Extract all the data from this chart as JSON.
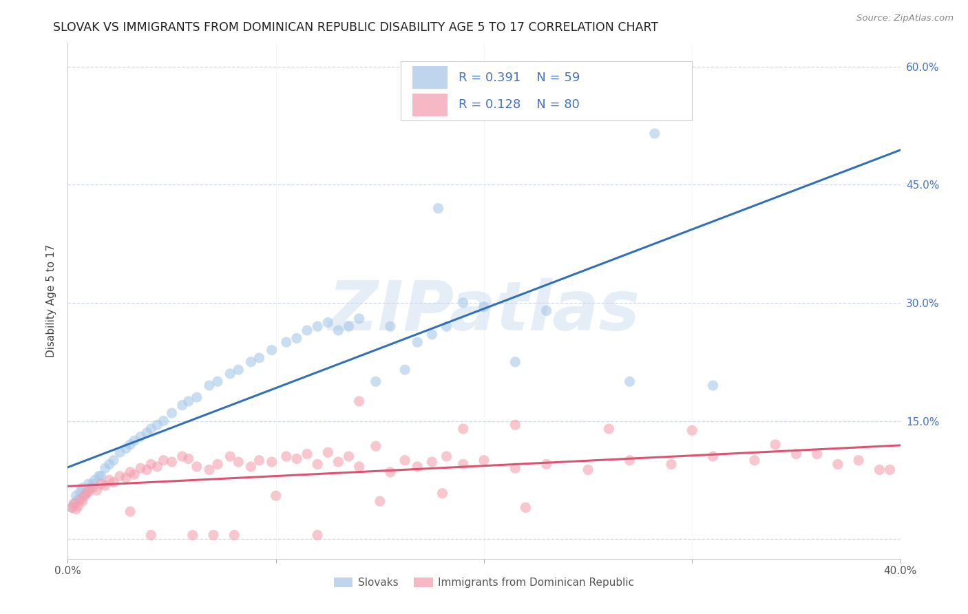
{
  "title": "SLOVAK VS IMMIGRANTS FROM DOMINICAN REPUBLIC DISABILITY AGE 5 TO 17 CORRELATION CHART",
  "source": "Source: ZipAtlas.com",
  "ylabel": "Disability Age 5 to 17",
  "xmin": 0.0,
  "xmax": 0.4,
  "ymin": -0.025,
  "ymax": 0.63,
  "yticks": [
    0.0,
    0.15,
    0.3,
    0.45,
    0.6
  ],
  "ytick_labels_right": [
    "",
    "15.0%",
    "30.0%",
    "45.0%",
    "60.0%"
  ],
  "xticks": [
    0.0,
    0.1,
    0.2,
    0.3,
    0.4
  ],
  "xtick_labels": [
    "0.0%",
    "",
    "",
    "",
    "40.0%"
  ],
  "blue_R": 0.391,
  "blue_N": 59,
  "pink_R": 0.128,
  "pink_N": 80,
  "blue_color": "#a8c8e8",
  "pink_color": "#f4a0b0",
  "blue_line_color": "#3070b8",
  "pink_line_color": "#e05070",
  "legend_label_blue": "Slovaks",
  "legend_label_pink": "Immigrants from Dominican Republic",
  "background_color": "#ffffff",
  "watermark": "ZIPatlas",
  "grid_color": "#d0d8e8",
  "blue_x": [
    0.002,
    0.003,
    0.004,
    0.005,
    0.006,
    0.007,
    0.008,
    0.009,
    0.01,
    0.011,
    0.012,
    0.013,
    0.015,
    0.016,
    0.018,
    0.02,
    0.022,
    0.025,
    0.028,
    0.03,
    0.032,
    0.035,
    0.038,
    0.04,
    0.043,
    0.046,
    0.05,
    0.055,
    0.058,
    0.062,
    0.068,
    0.072,
    0.078,
    0.082,
    0.088,
    0.092,
    0.098,
    0.105,
    0.11,
    0.115,
    0.12,
    0.125,
    0.13,
    0.135,
    0.14,
    0.148,
    0.155,
    0.162,
    0.168,
    0.175,
    0.182,
    0.19,
    0.2,
    0.215,
    0.23,
    0.27,
    0.31,
    0.178,
    0.282
  ],
  "blue_y": [
    0.04,
    0.045,
    0.055,
    0.05,
    0.06,
    0.065,
    0.055,
    0.06,
    0.07,
    0.065,
    0.07,
    0.075,
    0.08,
    0.08,
    0.09,
    0.095,
    0.1,
    0.11,
    0.115,
    0.12,
    0.125,
    0.13,
    0.135,
    0.14,
    0.145,
    0.15,
    0.16,
    0.17,
    0.175,
    0.18,
    0.195,
    0.2,
    0.21,
    0.215,
    0.225,
    0.23,
    0.24,
    0.25,
    0.255,
    0.265,
    0.27,
    0.275,
    0.265,
    0.27,
    0.28,
    0.2,
    0.27,
    0.215,
    0.25,
    0.26,
    0.27,
    0.3,
    0.295,
    0.225,
    0.29,
    0.2,
    0.195,
    0.42,
    0.515
  ],
  "pink_x": [
    0.002,
    0.003,
    0.004,
    0.005,
    0.006,
    0.007,
    0.008,
    0.009,
    0.01,
    0.012,
    0.014,
    0.016,
    0.018,
    0.02,
    0.022,
    0.025,
    0.028,
    0.03,
    0.032,
    0.035,
    0.038,
    0.04,
    0.043,
    0.046,
    0.05,
    0.055,
    0.058,
    0.062,
    0.068,
    0.072,
    0.078,
    0.082,
    0.088,
    0.092,
    0.098,
    0.105,
    0.11,
    0.115,
    0.12,
    0.125,
    0.13,
    0.135,
    0.14,
    0.148,
    0.155,
    0.162,
    0.168,
    0.175,
    0.182,
    0.19,
    0.2,
    0.215,
    0.23,
    0.25,
    0.27,
    0.29,
    0.31,
    0.33,
    0.35,
    0.37,
    0.39,
    0.14,
    0.19,
    0.215,
    0.26,
    0.3,
    0.34,
    0.36,
    0.38,
    0.395,
    0.06,
    0.08,
    0.1,
    0.12,
    0.15,
    0.18,
    0.22,
    0.04,
    0.03,
    0.07
  ],
  "pink_y": [
    0.04,
    0.045,
    0.038,
    0.042,
    0.05,
    0.048,
    0.055,
    0.058,
    0.06,
    0.065,
    0.062,
    0.07,
    0.068,
    0.075,
    0.072,
    0.08,
    0.078,
    0.085,
    0.082,
    0.09,
    0.088,
    0.095,
    0.092,
    0.1,
    0.098,
    0.105,
    0.102,
    0.092,
    0.088,
    0.095,
    0.105,
    0.098,
    0.092,
    0.1,
    0.098,
    0.105,
    0.102,
    0.108,
    0.095,
    0.11,
    0.098,
    0.105,
    0.092,
    0.118,
    0.085,
    0.1,
    0.092,
    0.098,
    0.105,
    0.095,
    0.1,
    0.09,
    0.095,
    0.088,
    0.1,
    0.095,
    0.105,
    0.1,
    0.108,
    0.095,
    0.088,
    0.175,
    0.14,
    0.145,
    0.14,
    0.138,
    0.12,
    0.108,
    0.1,
    0.088,
    0.005,
    0.005,
    0.055,
    0.005,
    0.048,
    0.058,
    0.04,
    0.005,
    0.035,
    0.005
  ]
}
